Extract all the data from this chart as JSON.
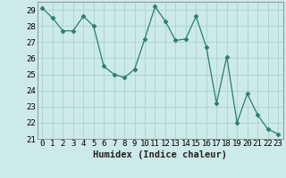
{
  "x": [
    0,
    1,
    2,
    3,
    4,
    5,
    6,
    7,
    8,
    9,
    10,
    11,
    12,
    13,
    14,
    15,
    16,
    17,
    18,
    19,
    20,
    21,
    22,
    23
  ],
  "y": [
    29.1,
    28.5,
    27.7,
    27.7,
    28.6,
    28.0,
    25.5,
    25.0,
    24.8,
    25.3,
    27.2,
    29.2,
    28.3,
    27.1,
    27.2,
    28.6,
    26.7,
    23.2,
    26.1,
    22.0,
    23.8,
    22.5,
    21.6,
    21.3
  ],
  "line_color": "#2d7d6d",
  "marker": "D",
  "marker_size": 2.5,
  "bg_color": "#cceae7",
  "grid_color": "#aad4d0",
  "xlabel": "Humidex (Indice chaleur)",
  "xlim": [
    -0.5,
    23.5
  ],
  "ylim": [
    21,
    29.5
  ],
  "yticks": [
    21,
    22,
    23,
    24,
    25,
    26,
    27,
    28,
    29
  ],
  "xticks": [
    0,
    1,
    2,
    3,
    4,
    5,
    6,
    7,
    8,
    9,
    10,
    11,
    12,
    13,
    14,
    15,
    16,
    17,
    18,
    19,
    20,
    21,
    22,
    23
  ],
  "xlabel_fontsize": 7.5,
  "tick_fontsize": 6.5
}
